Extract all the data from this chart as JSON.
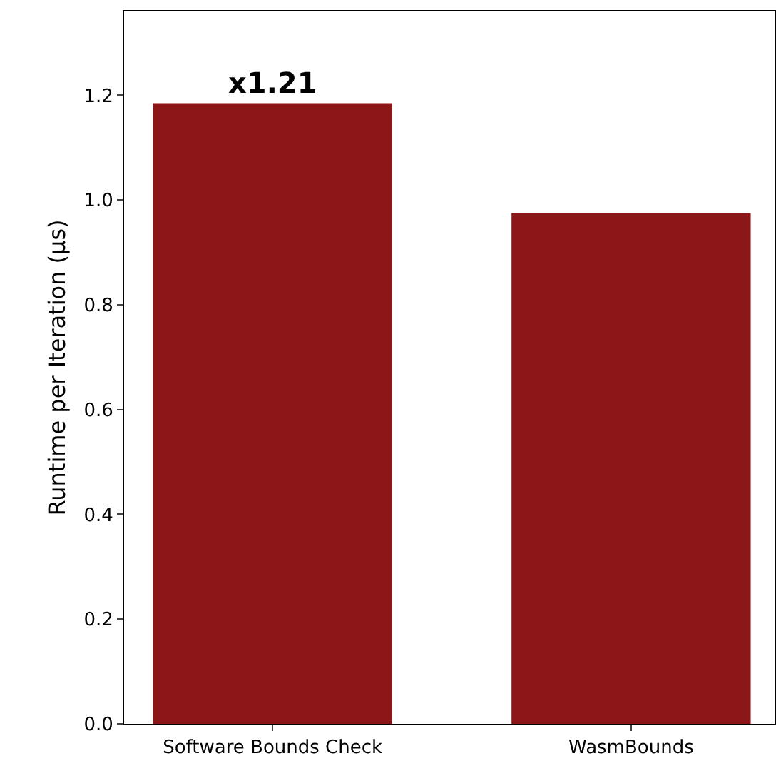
{
  "chart_data": {
    "type": "bar",
    "ylabel": "Runtime per Iteration (μs)",
    "categories": [
      "Software Bounds Check",
      "WasmBounds"
    ],
    "values": [
      1.185,
      0.975
    ],
    "color": "#8b1718",
    "ylim": [
      0,
      1.36
    ],
    "yticks": [
      {
        "value": 0,
        "label": "0.0"
      },
      0.2,
      0.4,
      0.6,
      0.8,
      {
        "value": 1,
        "label": "1.0"
      },
      1.2
    ],
    "annotations": [
      {
        "text": "x1.21",
        "x": "Software Bounds Check",
        "y": 1.185
      }
    ],
    "grid": false,
    "legend": false
  }
}
